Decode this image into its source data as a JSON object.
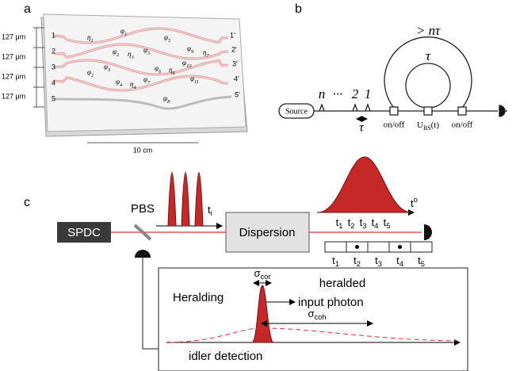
{
  "panel_labels": [
    "a",
    "b",
    "c"
  ],
  "panel_a": {
    "pitch_labels": [
      "127 μm",
      "127 μm",
      "127 μm",
      "127 μm"
    ],
    "input_ports": [
      "1",
      "2",
      "3",
      "4",
      "5"
    ],
    "output_ports": [
      "1'",
      "2'",
      "3'",
      "4'",
      "5'"
    ],
    "parameters": [
      {
        "main": "η",
        "sub": "1"
      },
      {
        "main": "φ",
        "sub": "1"
      },
      {
        "main": "φ",
        "sub": "5"
      },
      {
        "main": "φ",
        "sub": "2"
      },
      {
        "main": "η",
        "sub": "3"
      },
      {
        "main": "φ",
        "sub": "5"
      },
      {
        "main": "φ",
        "sub": "9"
      },
      {
        "main": "η",
        "sub": "7"
      },
      {
        "main": "φ",
        "sub": "3"
      },
      {
        "main": "φ",
        "sub": "6"
      },
      {
        "main": "η",
        "sub": "6"
      },
      {
        "main": "φ",
        "sub": "10"
      },
      {
        "main": "φ",
        "sub": "2"
      },
      {
        "main": "φ",
        "sub": "4"
      },
      {
        "main": "η",
        "sub": "4"
      },
      {
        "main": "φ",
        "sub": "7"
      },
      {
        "main": "φ",
        "sub": "11"
      },
      {
        "main": "φ",
        "sub": "8"
      }
    ],
    "length_label": "10 cm"
  },
  "panel_b": {
    "long_delay": "> nτ",
    "short_delay": "τ",
    "pulse_labels": [
      "n",
      "···",
      "2",
      "1"
    ],
    "spacing_label": "τ",
    "source": "Source",
    "switch_labels": [
      "on/off",
      {
        "main": "U",
        "sub": "BS",
        "tail": "(t)"
      },
      "on/off"
    ]
  },
  "panel_c": {
    "source": "SPDC",
    "splitter": "PBS",
    "element": "Dispersion",
    "input_time": {
      "main": "t",
      "sub": "i"
    },
    "output_time": {
      "main": "t",
      "sup": "o"
    },
    "bin_labels": [
      {
        "main": "t",
        "sub": "1"
      },
      {
        "main": "t",
        "sub": "2"
      },
      {
        "main": "t",
        "sub": "3"
      },
      {
        "main": "t",
        "sub": "4"
      },
      {
        "main": "t",
        "sub": "5"
      }
    ],
    "detector_bins": [
      {
        "main": "t",
        "sub": "1"
      },
      {
        "main": "t",
        "sub": "2"
      },
      {
        "main": "t",
        "sub": "3"
      },
      {
        "main": "t",
        "sub": "4"
      },
      {
        "main": "t",
        "sub": "5"
      }
    ],
    "inset": {
      "title": "Heralding",
      "sigma_cor": {
        "main": "σ",
        "sub": "cor"
      },
      "heralded": "heralded",
      "input_photon": "input photon",
      "sigma_coh": {
        "main": "σ",
        "sub": "coh"
      },
      "idler": "idler detection"
    }
  }
}
